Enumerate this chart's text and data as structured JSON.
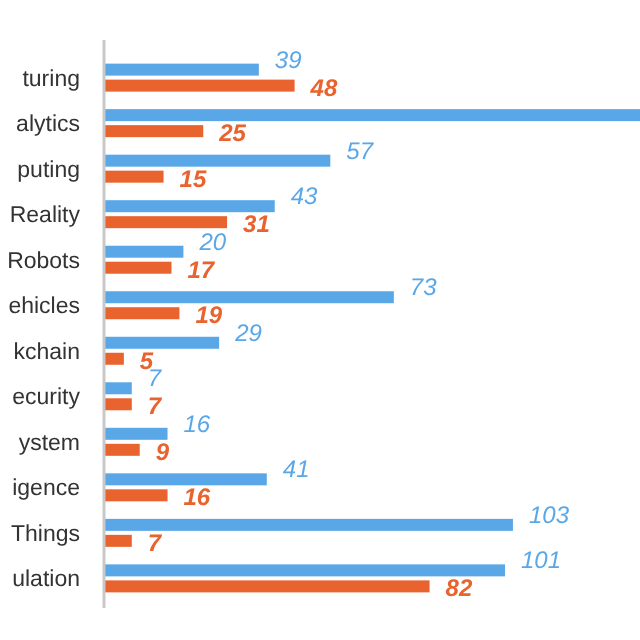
{
  "chart_data": {
    "type": "bar",
    "orientation": "horizontal",
    "categories": [
      "turing",
      "alytics",
      "puting",
      "Reality",
      "Robots",
      "ehicles",
      "kchain",
      "ecurity",
      "ystem",
      "igence",
      "Things",
      "ulation"
    ],
    "series": [
      {
        "color": "#5aa7e8",
        "values": [
          39,
          135,
          57,
          43,
          20,
          73,
          29,
          7,
          16,
          41,
          103,
          101
        ],
        "value_labels": [
          "39",
          null,
          "57",
          "43",
          "20",
          "73",
          "29",
          "7",
          "16",
          "41",
          "103",
          "101"
        ]
      },
      {
        "color": "#e8632e",
        "values": [
          48,
          25,
          15,
          31,
          17,
          19,
          5,
          7,
          9,
          16,
          7,
          82
        ],
        "value_labels": [
          "48",
          "25",
          "15",
          "31",
          "17",
          "19",
          "5",
          "7",
          "9",
          "16",
          "7",
          "82"
        ]
      }
    ],
    "xlim": [
      0,
      135
    ]
  }
}
